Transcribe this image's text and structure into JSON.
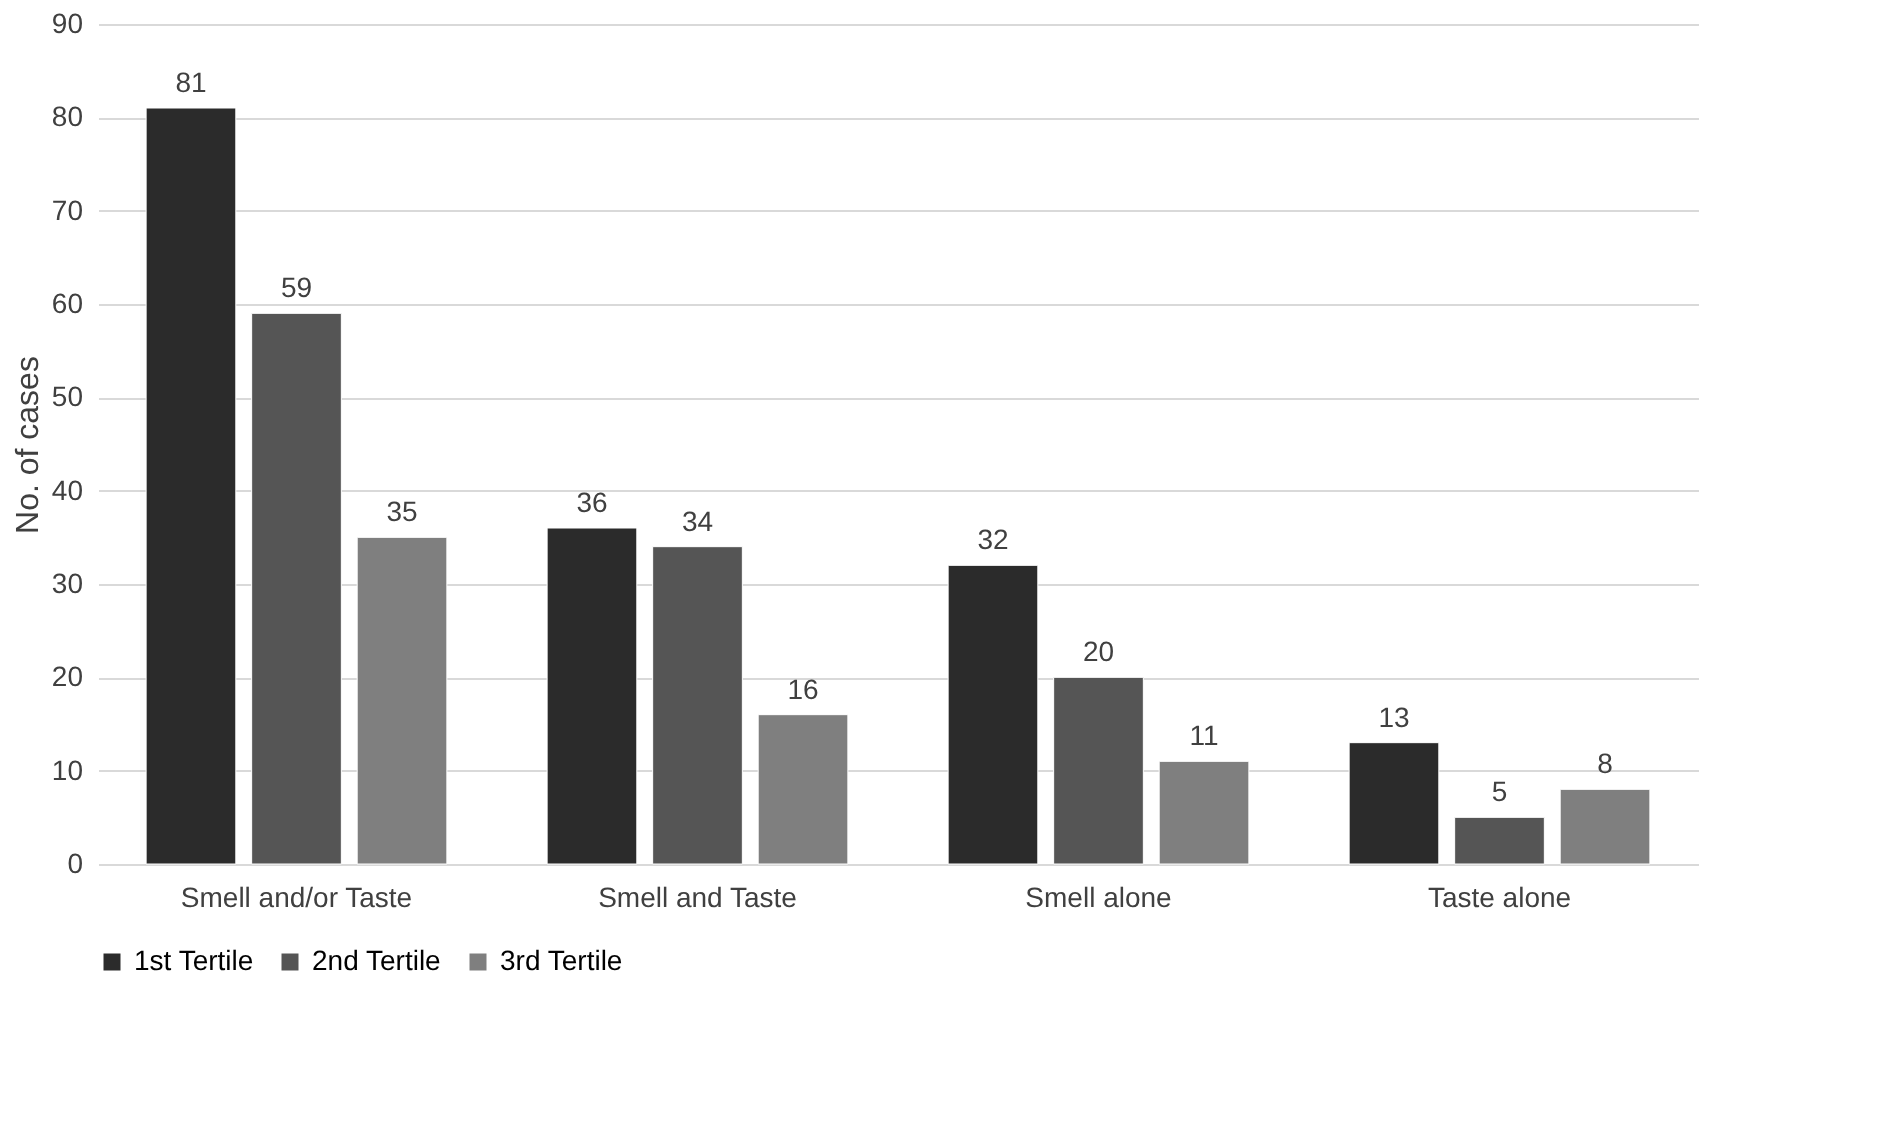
{
  "chart_data": {
    "type": "bar",
    "ylabel": "No. of cases",
    "categories": [
      "Smell and/or Taste",
      "Smell and Taste",
      "Smell alone",
      "Taste alone"
    ],
    "series": [
      {
        "name": "1st Tertile",
        "color": "#2b2b2b",
        "values": [
          81,
          36,
          32,
          13
        ]
      },
      {
        "name": "2nd Tertile",
        "color": "#555555",
        "values": [
          59,
          34,
          20,
          5
        ]
      },
      {
        "name": "3rd Tertile",
        "color": "#7f7f7f",
        "values": [
          35,
          16,
          11,
          8
        ]
      }
    ],
    "ylim": [
      0,
      90
    ],
    "yticks": [
      0,
      10,
      20,
      30,
      40,
      50,
      60,
      70,
      80,
      90
    ],
    "grid": "y",
    "legend": "bottom",
    "data_labels": true
  }
}
